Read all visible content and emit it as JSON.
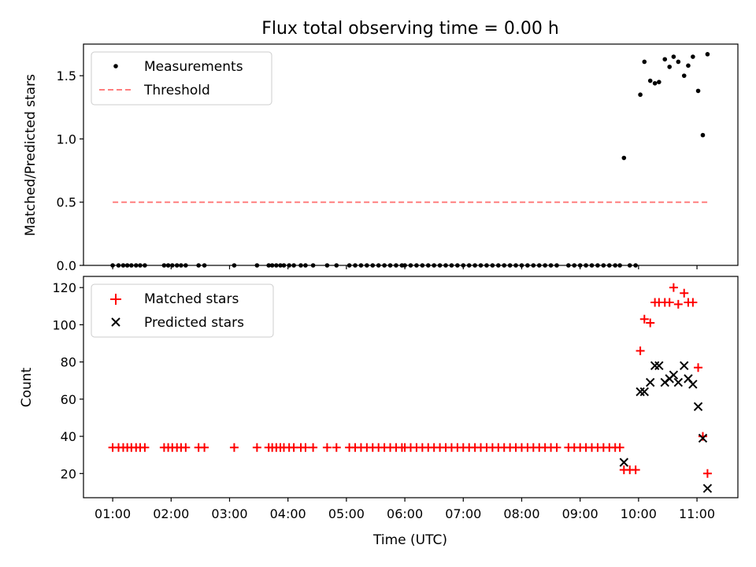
{
  "chart_data": [
    {
      "type": "scatter",
      "title": "Flux total observing time = 0.00 h",
      "ylabel": "Matched/Predicted stars",
      "ylim": [
        0,
        1.75
      ],
      "yticks": [
        0.0,
        0.5,
        1.0,
        1.5
      ],
      "ytick_labels": [
        "0.0",
        "0.5",
        "1.0",
        "1.5"
      ],
      "legend_position": "upper-left",
      "series": [
        {
          "name": "Measurements",
          "marker": "dot",
          "color": "#000000",
          "x": [
            1.0,
            1.1,
            1.18,
            1.25,
            1.32,
            1.4,
            1.47,
            1.55,
            1.88,
            1.95,
            2.02,
            2.1,
            2.17,
            2.25,
            2.47,
            2.57,
            3.08,
            3.47,
            3.67,
            3.73,
            3.8,
            3.87,
            3.93,
            4.02,
            4.1,
            4.22,
            4.3,
            4.43,
            4.67,
            4.83,
            5.05,
            5.15,
            5.25,
            5.35,
            5.45,
            5.55,
            5.65,
            5.75,
            5.85,
            5.95,
            6.0,
            6.1,
            6.2,
            6.3,
            6.4,
            6.5,
            6.6,
            6.7,
            6.8,
            6.9,
            7.0,
            7.1,
            7.2,
            7.3,
            7.4,
            7.5,
            7.6,
            7.7,
            7.8,
            7.9,
            8.0,
            8.1,
            8.2,
            8.3,
            8.4,
            8.5,
            8.6,
            8.8,
            8.9,
            9.0,
            9.1,
            9.2,
            9.3,
            9.4,
            9.5,
            9.6,
            9.68,
            9.75,
            9.85,
            9.95,
            10.03,
            10.1,
            10.2,
            10.28,
            10.35,
            10.45,
            10.53,
            10.6,
            10.68,
            10.78,
            10.85,
            10.93,
            11.02,
            11.1,
            11.18
          ],
          "y": [
            0,
            0,
            0,
            0,
            0,
            0,
            0,
            0,
            0,
            0,
            0,
            0,
            0,
            0,
            0,
            0,
            0,
            0,
            0,
            0,
            0,
            0,
            0,
            0,
            0,
            0,
            0,
            0,
            0,
            0,
            0,
            0,
            0,
            0,
            0,
            0,
            0,
            0,
            0,
            0,
            0,
            0,
            0,
            0,
            0,
            0,
            0,
            0,
            0,
            0,
            0,
            0,
            0,
            0,
            0,
            0,
            0,
            0,
            0,
            0,
            0,
            0,
            0,
            0,
            0,
            0,
            0,
            0,
            0,
            0,
            0,
            0,
            0,
            0,
            0,
            0,
            0,
            0.85,
            0,
            0,
            1.35,
            1.61,
            1.46,
            1.44,
            1.45,
            1.63,
            1.57,
            1.65,
            1.61,
            1.5,
            1.58,
            1.65,
            1.38,
            1.03,
            1.67
          ]
        },
        {
          "name": "Threshold",
          "marker": "dashed-line",
          "color": "#ff7f7f",
          "x": [
            1.0,
            11.18
          ],
          "y": [
            0.5,
            0.5
          ]
        }
      ]
    },
    {
      "type": "scatter",
      "xlabel": "Time (UTC)",
      "ylabel": "Count",
      "xlim": [
        0.5,
        11.7
      ],
      "ylim": [
        7,
        126
      ],
      "xticks": [
        1,
        2,
        3,
        4,
        5,
        6,
        7,
        8,
        9,
        10,
        11
      ],
      "xtick_labels": [
        "01:00",
        "02:00",
        "03:00",
        "04:00",
        "05:00",
        "06:00",
        "07:00",
        "08:00",
        "09:00",
        "10:00",
        "11:00"
      ],
      "yticks": [
        20,
        40,
        60,
        80,
        100,
        120
      ],
      "ytick_labels": [
        "20",
        "40",
        "60",
        "80",
        "100",
        "120"
      ],
      "legend_position": "upper-left",
      "series": [
        {
          "name": "Matched stars",
          "marker": "plus",
          "color": "#ff0000",
          "x": [
            1.0,
            1.1,
            1.18,
            1.25,
            1.32,
            1.4,
            1.47,
            1.55,
            1.88,
            1.95,
            2.02,
            2.1,
            2.17,
            2.25,
            2.47,
            2.57,
            3.08,
            3.47,
            3.67,
            3.73,
            3.8,
            3.87,
            3.93,
            4.02,
            4.1,
            4.22,
            4.3,
            4.43,
            4.67,
            4.83,
            5.05,
            5.15,
            5.25,
            5.35,
            5.45,
            5.55,
            5.65,
            5.75,
            5.85,
            5.95,
            6.0,
            6.1,
            6.2,
            6.3,
            6.4,
            6.5,
            6.6,
            6.7,
            6.8,
            6.9,
            7.0,
            7.1,
            7.2,
            7.3,
            7.4,
            7.5,
            7.6,
            7.7,
            7.8,
            7.9,
            8.0,
            8.1,
            8.2,
            8.3,
            8.4,
            8.5,
            8.6,
            8.8,
            8.9,
            9.0,
            9.1,
            9.2,
            9.3,
            9.4,
            9.5,
            9.6,
            9.68,
            9.75,
            9.85,
            9.95,
            10.03,
            10.1,
            10.2,
            10.28,
            10.35,
            10.45,
            10.53,
            10.6,
            10.68,
            10.78,
            10.85,
            10.93,
            11.02,
            11.1,
            11.18
          ],
          "y": [
            34,
            34,
            34,
            34,
            34,
            34,
            34,
            34,
            34,
            34,
            34,
            34,
            34,
            34,
            34,
            34,
            34,
            34,
            34,
            34,
            34,
            34,
            34,
            34,
            34,
            34,
            34,
            34,
            34,
            34,
            34,
            34,
            34,
            34,
            34,
            34,
            34,
            34,
            34,
            34,
            34,
            34,
            34,
            34,
            34,
            34,
            34,
            34,
            34,
            34,
            34,
            34,
            34,
            34,
            34,
            34,
            34,
            34,
            34,
            34,
            34,
            34,
            34,
            34,
            34,
            34,
            34,
            34,
            34,
            34,
            34,
            34,
            34,
            34,
            34,
            34,
            34,
            22,
            22,
            22,
            86,
            103,
            101,
            112,
            112,
            112,
            112,
            120,
            111,
            117,
            112,
            112,
            77,
            40,
            20
          ]
        },
        {
          "name": "Predicted stars",
          "marker": "cross",
          "color": "#000000",
          "x": [
            9.75,
            10.03,
            10.1,
            10.2,
            10.28,
            10.35,
            10.45,
            10.53,
            10.6,
            10.68,
            10.78,
            10.85,
            10.93,
            11.02,
            11.1,
            11.18
          ],
          "y": [
            26,
            64,
            64,
            69,
            78,
            78,
            69,
            71,
            73,
            69,
            78,
            71,
            68,
            56,
            39,
            12
          ]
        }
      ]
    }
  ]
}
